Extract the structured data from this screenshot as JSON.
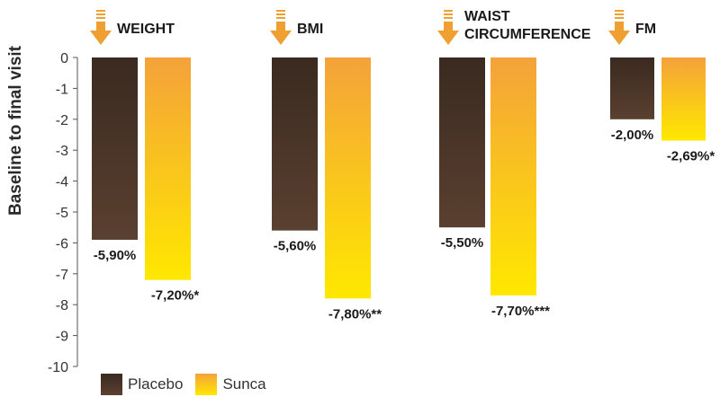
{
  "chart_data": {
    "type": "bar",
    "ylabel": "Baseline to final visit",
    "ylim": [
      -10,
      0
    ],
    "yticks": [
      0,
      -1,
      -2,
      -3,
      -4,
      -5,
      -6,
      -7,
      -8,
      -9,
      -10
    ],
    "categories": [
      "WEIGHT",
      "BMI",
      "WAIST CIRCUMFERENCE",
      "FM"
    ],
    "series": [
      {
        "name": "Placebo",
        "values": [
          -5.9,
          -5.6,
          -5.5,
          -2.0
        ],
        "labels": [
          "-5,90%",
          "-5,60%",
          "-5,50%",
          "-2,00%"
        ]
      },
      {
        "name": "Sunca",
        "values": [
          -7.2,
          -7.8,
          -7.7,
          -2.69
        ],
        "labels": [
          "-7,20%*",
          "-7,80%**",
          "-7,70%***",
          "-2,69%*"
        ]
      }
    ],
    "legend": "bottom-left",
    "grid": false
  },
  "colors": {
    "placebo_top": "#3a2a20",
    "placebo_bottom": "#5a4030",
    "sunca_top": "#f4a23a",
    "sunca_bottom": "#ffe800",
    "arrow": "#f0a030",
    "axis": "#555555",
    "text": "#1a1a1a"
  },
  "icons": {
    "category_marker": "down-arrow-icon"
  }
}
